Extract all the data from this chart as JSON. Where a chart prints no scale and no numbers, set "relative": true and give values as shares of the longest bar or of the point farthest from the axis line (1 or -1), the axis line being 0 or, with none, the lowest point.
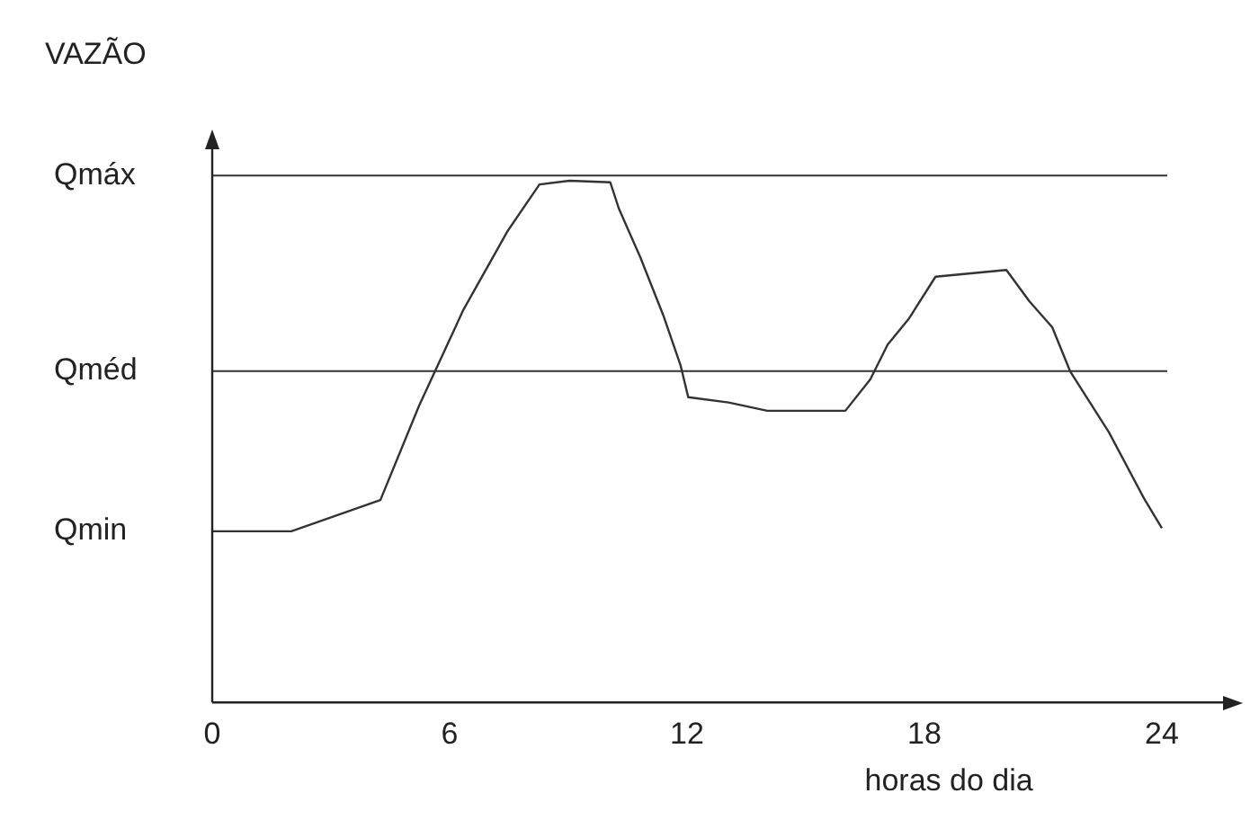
{
  "chart_data": {
    "type": "line",
    "ylabel": "VAZÃO",
    "xlabel": "horas do dia",
    "relative": true,
    "xlim": [
      0,
      25.5
    ],
    "xticks": [
      0,
      6,
      12,
      18,
      24
    ],
    "grid": false,
    "legend": false,
    "marker": "none",
    "line_style": "solid",
    "series": [
      {
        "color": "#333333",
        "x": [
          0,
          2,
          4.25,
          5.23,
          6.35,
          7.46,
          8.27,
          9.03,
          10.06,
          10.28,
          10.82,
          11.4,
          11.84,
          12.03,
          13.05,
          14.03,
          16,
          16.63,
          17.07,
          17.61,
          18.28,
          20.07,
          20.65,
          21.23,
          21.68,
          22.66,
          23.55,
          24
        ],
        "values": [
          0.328,
          0.328,
          0.388,
          0.569,
          0.753,
          0.903,
          0.993,
          1,
          0.997,
          0.946,
          0.853,
          0.742,
          0.645,
          0.585,
          0.575,
          0.559,
          0.559,
          0.619,
          0.686,
          0.736,
          0.816,
          0.829,
          0.769,
          0.719,
          0.635,
          0.518,
          0.391,
          0.334
        ]
      }
    ],
    "ref_lines": [
      {
        "axis": "y",
        "value": 1.01,
        "label": "Qmáx",
        "color": "#333333"
      },
      {
        "axis": "y",
        "value": 0.635,
        "label": "Qméd",
        "color": "#333333"
      }
    ],
    "annotations": [
      "Qmin"
    ]
  }
}
